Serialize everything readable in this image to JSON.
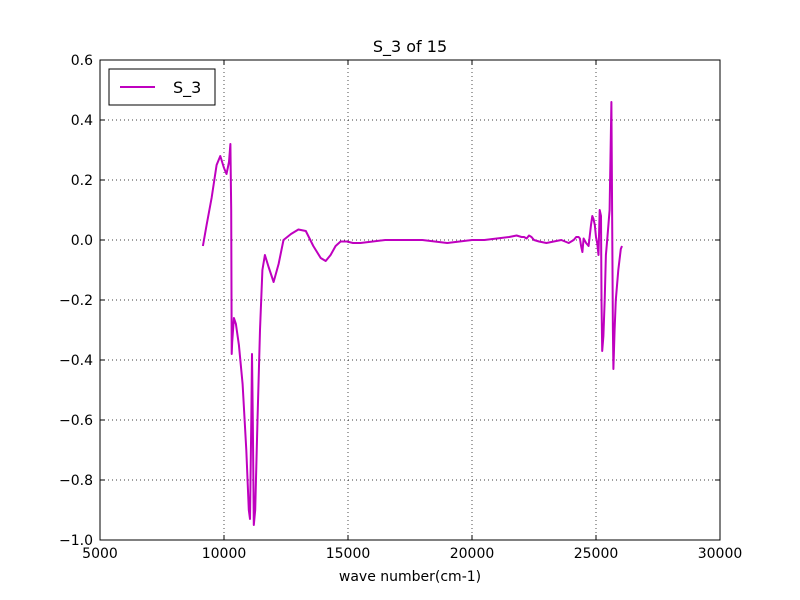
{
  "chart_data": {
    "type": "line",
    "title": "S_3 of 15",
    "xlabel": "wave number(cm-1)",
    "ylabel": "",
    "xlim": [
      5000,
      30000
    ],
    "ylim": [
      -1.0,
      0.6
    ],
    "xticks": [
      5000,
      10000,
      15000,
      20000,
      25000,
      30000
    ],
    "xtick_labels": [
      "5000",
      "10000",
      "15000",
      "20000",
      "25000",
      "30000"
    ],
    "yticks": [
      0.6,
      0.4,
      0.2,
      0.0,
      -0.2,
      -0.4,
      -0.6,
      -0.8,
      -1.0
    ],
    "ytick_labels": [
      "0.6",
      "0.4",
      "0.2",
      "0.0",
      "−0.2",
      "−0.4",
      "−0.6",
      "−0.8",
      "−1.0"
    ],
    "grid": true,
    "legend": {
      "position": "top-left",
      "entries": [
        "S_3"
      ]
    },
    "series": [
      {
        "name": "S_3",
        "color": "#bf00bf",
        "x": [
          9150,
          9300,
          9500,
          9700,
          9850,
          10000,
          10100,
          10200,
          10260,
          10290,
          10310,
          10330,
          10400,
          10480,
          10600,
          10750,
          10900,
          11000,
          11050,
          11100,
          11130,
          11160,
          11200,
          11260,
          11350,
          11450,
          11550,
          11650,
          11800,
          12000,
          12200,
          12400,
          12700,
          13000,
          13300,
          13600,
          13900,
          14100,
          14300,
          14500,
          14700,
          14950,
          15200,
          15500,
          16000,
          16500,
          17000,
          17500,
          18000,
          18500,
          19000,
          19500,
          20000,
          20500,
          21000,
          21500,
          21800,
          22000,
          22100,
          22200,
          22300,
          22400,
          22500,
          22700,
          23000,
          23300,
          23600,
          23900,
          24100,
          24200,
          24300,
          24350,
          24400,
          24450,
          24500,
          24600,
          24700,
          24800,
          24850,
          24900,
          24950,
          25000,
          25050,
          25100,
          25150,
          25200,
          25220,
          25250,
          25300,
          25350,
          25400,
          25450,
          25500,
          25550,
          25600,
          25620,
          25650,
          25680,
          25700,
          25750,
          25800,
          25900,
          26000,
          26050
        ],
        "values": [
          -0.02,
          0.05,
          0.14,
          0.25,
          0.28,
          0.24,
          0.22,
          0.26,
          0.32,
          0.1,
          -0.38,
          -0.34,
          -0.26,
          -0.28,
          -0.35,
          -0.48,
          -0.7,
          -0.9,
          -0.93,
          -0.6,
          -0.38,
          -0.6,
          -0.95,
          -0.9,
          -0.6,
          -0.3,
          -0.1,
          -0.05,
          -0.09,
          -0.14,
          -0.08,
          0.0,
          0.02,
          0.035,
          0.03,
          -0.02,
          -0.06,
          -0.07,
          -0.05,
          -0.02,
          -0.005,
          -0.005,
          -0.01,
          -0.01,
          -0.005,
          0.0,
          0.0,
          0.0,
          0.0,
          -0.005,
          -0.01,
          -0.005,
          0.0,
          0.0,
          0.005,
          0.01,
          0.015,
          0.01,
          0.01,
          0.005,
          0.015,
          0.01,
          0.0,
          -0.005,
          -0.01,
          -0.005,
          0.0,
          -0.01,
          0.0,
          0.01,
          0.01,
          0.005,
          -0.02,
          -0.04,
          0.005,
          -0.01,
          -0.02,
          0.05,
          0.08,
          0.07,
          0.05,
          0.01,
          -0.01,
          -0.05,
          0.1,
          0.08,
          -0.2,
          -0.37,
          -0.32,
          -0.2,
          -0.05,
          0.0,
          0.05,
          0.1,
          0.36,
          0.46,
          0.1,
          -0.3,
          -0.43,
          -0.3,
          -0.2,
          -0.1,
          -0.03,
          -0.02
        ]
      }
    ]
  }
}
